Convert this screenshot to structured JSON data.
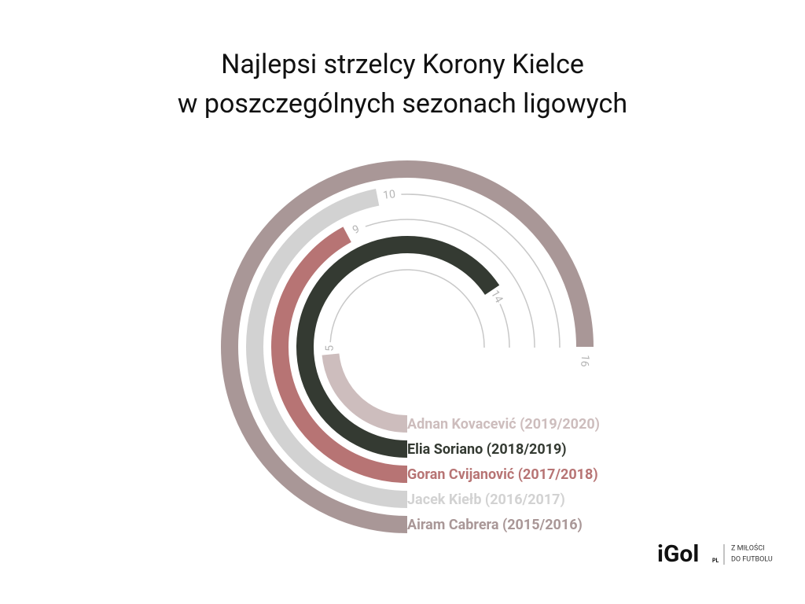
{
  "chart_data": {
    "type": "radial-bar",
    "title_lines": [
      "Najlepsi strzelcy Korony Kielce",
      "w poszczególnych sezonach ligowych"
    ],
    "categories": [
      "Adnan Kovacević (2019/2020)",
      "Elia Soriano (2018/2019)",
      "Goran Cvijanović (2017/2018)",
      "Jacek Kiełb (2016/2017)",
      "Airam Cabrera (2015/2016)"
    ],
    "values": [
      5,
      14,
      9,
      10,
      16
    ],
    "colors": [
      "#cdbdbd",
      "#343a32",
      "#b77474",
      "#d2d2d2",
      "#a99797"
    ],
    "xlim": [
      0,
      16
    ]
  },
  "logo": {
    "name": "iGol",
    "badge": "PL",
    "tagline_1": "Z MIŁOŚCI",
    "tagline_2": "DO FUTBOLU"
  }
}
